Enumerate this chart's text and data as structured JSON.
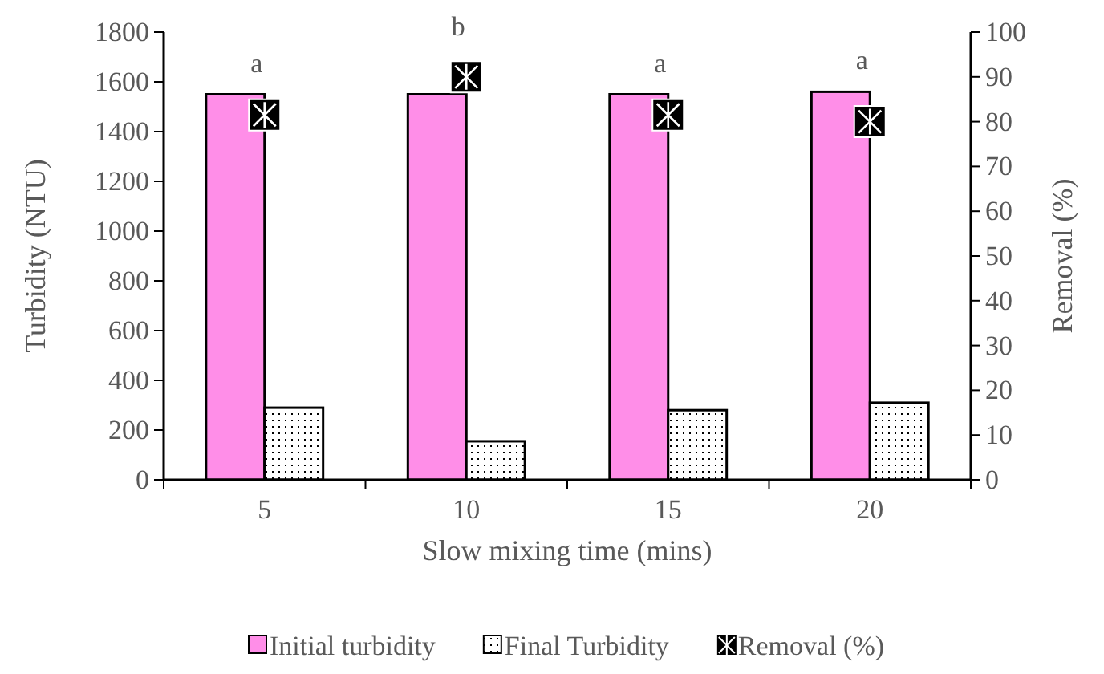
{
  "chart_data": {
    "type": "bar",
    "xlabel": "Slow mixing time (mins)",
    "ylabel": "Turbidity (NTU)",
    "y2label": "Removal (%)",
    "categories": [
      "5",
      "10",
      "15",
      "20"
    ],
    "series": [
      {
        "name": "Initial turbidity",
        "color": "#ff8ee8",
        "values": [
          1550,
          1550,
          1550,
          1560
        ]
      },
      {
        "name": "Final Turbidity",
        "color": "#000000",
        "values": [
          290,
          155,
          280,
          310
        ]
      },
      {
        "name": "Removal (%)",
        "type": "scatter",
        "axis": "y2",
        "color": "#000000",
        "marker": "square",
        "values": [
          81.5,
          90,
          81.5,
          80
        ]
      }
    ],
    "ylim": [
      0,
      1800
    ],
    "yticks": [
      0,
      200,
      400,
      600,
      800,
      1000,
      1200,
      1400,
      1600,
      1800
    ],
    "y2lim": [
      0,
      100
    ],
    "y2ticks": [
      0,
      10,
      20,
      30,
      40,
      50,
      60,
      70,
      80,
      90,
      100
    ],
    "annotations": [
      "a",
      "b",
      "a",
      "a"
    ],
    "grid": false,
    "legend": "bottom"
  }
}
